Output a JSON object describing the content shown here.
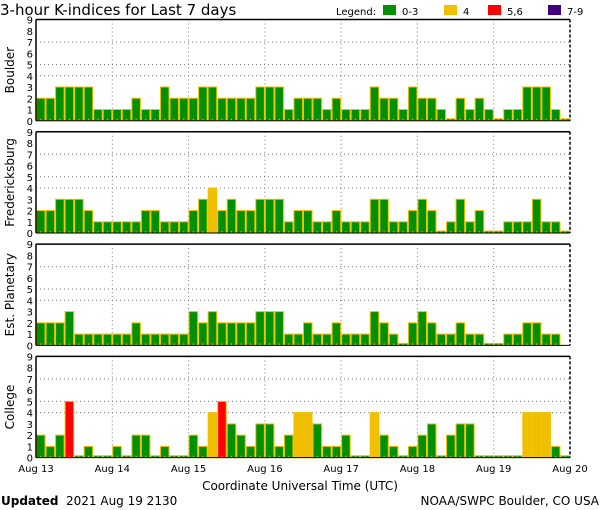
{
  "chart_data": {
    "type": "bar",
    "title": "3-hour K-indices for Last 7 days",
    "xlabel": "Coordinate Universal Time (UTC)",
    "ylim": [
      0,
      9
    ],
    "yticks": [
      "0",
      "1",
      "2",
      "3",
      "4",
      "5",
      "6",
      "7",
      "8",
      "9"
    ],
    "x_tick_labels": [
      "Aug 13",
      "Aug 14",
      "Aug 15",
      "Aug 16",
      "Aug 17",
      "Aug 18",
      "Aug 19",
      "Aug 20"
    ],
    "bars_per_day": 8,
    "gridlines_at": [
      4,
      5,
      7
    ],
    "legend": {
      "label": "Legend:",
      "entries": [
        {
          "label": "0-3",
          "color": "#009000"
        },
        {
          "label": "4",
          "color": "#f0c000"
        },
        {
          "label": "5,6",
          "color": "#ff0000"
        },
        {
          "label": "7-9",
          "color": "#400080"
        }
      ],
      "placement": "top-right"
    },
    "series": [
      {
        "name": "Boulder",
        "values": [
          2,
          2,
          3,
          3,
          3,
          3,
          1,
          1,
          1,
          1,
          2,
          1,
          1,
          3,
          2,
          2,
          2,
          3,
          3,
          2,
          2,
          2,
          2,
          3,
          3,
          3,
          1,
          2,
          2,
          2,
          1,
          2,
          1,
          1,
          1,
          3,
          2,
          2,
          1,
          3,
          2,
          2,
          1,
          0,
          2,
          1,
          2,
          1,
          0,
          1,
          1,
          3,
          3,
          3,
          1,
          0
        ]
      },
      {
        "name": "Fredericksburg",
        "values": [
          2,
          2,
          3,
          3,
          3,
          2,
          1,
          1,
          1,
          1,
          1,
          2,
          2,
          1,
          1,
          1,
          2,
          3,
          4,
          2,
          3,
          2,
          2,
          3,
          3,
          3,
          1,
          2,
          2,
          1,
          1,
          2,
          1,
          1,
          1,
          3,
          3,
          1,
          1,
          2,
          3,
          2,
          0,
          1,
          3,
          1,
          2,
          0,
          0,
          1,
          1,
          1,
          3,
          1,
          1,
          0
        ]
      },
      {
        "name": "Est. Planetary",
        "values": [
          2,
          2,
          2,
          3,
          1,
          1,
          1,
          1,
          1,
          1,
          2,
          1,
          1,
          1,
          1,
          1,
          3,
          2,
          3,
          2,
          2,
          2,
          2,
          3,
          3,
          3,
          1,
          1,
          2,
          1,
          1,
          2,
          1,
          1,
          1,
          3,
          2,
          1,
          0,
          2,
          3,
          2,
          1,
          1,
          2,
          1,
          1,
          0,
          0,
          1,
          1,
          2,
          2,
          1,
          1,
          null
        ]
      },
      {
        "name": "College",
        "values": [
          2,
          1,
          2,
          5,
          0,
          1,
          0,
          0,
          1,
          0,
          2,
          2,
          0,
          1,
          0,
          0,
          2,
          1,
          4,
          5,
          3,
          2,
          1,
          3,
          3,
          1,
          2,
          4,
          4,
          3,
          1,
          1,
          2,
          0,
          0,
          4,
          2,
          1,
          0,
          1,
          2,
          3,
          0,
          2,
          3,
          3,
          0,
          0,
          0,
          0,
          0,
          4,
          4,
          4,
          1,
          0
        ]
      }
    ]
  },
  "footer": {
    "updated_label": "Updated",
    "updated_value": "2021 Aug 19 2130",
    "source": "NOAA/SWPC Boulder, CO USA"
  }
}
